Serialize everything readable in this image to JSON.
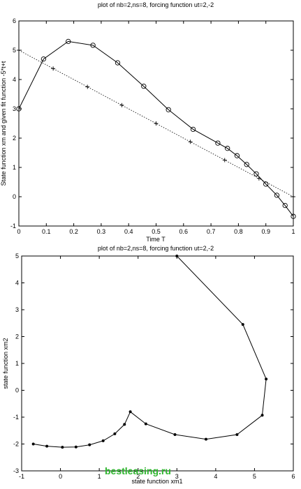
{
  "chart_data": [
    {
      "type": "line",
      "title": "plot of nb=2,ns=8, forcing function ut=2,-2",
      "xlabel": "Time T",
      "ylabel": "State function xm and given fit function -5*t+t",
      "xlim": [
        0,
        1
      ],
      "ylim": [
        -1,
        6
      ],
      "xticks": [
        "0",
        "0.1",
        "0.2",
        "0.3",
        "0.4",
        "0.5",
        "0.6",
        "0.7",
        "0.8",
        "0.9",
        "1"
      ],
      "yticks": [
        "-1",
        "0",
        "1",
        "2",
        "3",
        "4",
        "5",
        "6"
      ],
      "grid": false,
      "series": [
        {
          "marker": "circle",
          "style": "solid",
          "points": [
            [
              0,
              3.0
            ],
            [
              0.09,
              4.7
            ],
            [
              0.18,
              5.3
            ],
            [
              0.27,
              5.17
            ],
            [
              0.36,
              4.57
            ],
            [
              0.455,
              3.77
            ],
            [
              0.545,
              2.97
            ],
            [
              0.635,
              2.3
            ],
            [
              0.725,
              1.83
            ],
            [
              0.76,
              1.65
            ],
            [
              0.795,
              1.4
            ],
            [
              0.83,
              1.1
            ],
            [
              0.865,
              0.78
            ],
            [
              0.9,
              0.43
            ],
            [
              0.94,
              0.05
            ],
            [
              0.97,
              -0.3
            ],
            [
              1.0,
              -0.67
            ]
          ]
        },
        {
          "marker": "plus",
          "style": "dotted",
          "points": [
            [
              0,
              5.0
            ],
            [
              0.125,
              4.375
            ],
            [
              0.25,
              3.75
            ],
            [
              0.375,
              3.125
            ],
            [
              0.5,
              2.5
            ],
            [
              0.625,
              1.875
            ],
            [
              0.75,
              1.25
            ],
            [
              0.875,
              0.625
            ],
            [
              1.0,
              0.0
            ]
          ]
        }
      ]
    },
    {
      "type": "line",
      "title": "plot of nb=2,ns=8, forcing function ut=2,-2",
      "xlabel": "state function xm1",
      "ylabel": "state function xm2",
      "xlim": [
        -1,
        6
      ],
      "ylim": [
        -3,
        5
      ],
      "xticks": [
        "-1",
        "0",
        "1",
        "2",
        "3",
        "4",
        "5",
        "6"
      ],
      "yticks": [
        "-3",
        "-2",
        "-1",
        "0",
        "1",
        "2",
        "3",
        "4",
        "5"
      ],
      "grid": false,
      "series": [
        {
          "marker": "dot",
          "style": "solid",
          "points": [
            [
              3.0,
              5.0
            ],
            [
              4.7,
              2.45
            ],
            [
              5.3,
              0.42
            ],
            [
              5.2,
              -0.93
            ],
            [
              4.55,
              -1.65
            ],
            [
              3.75,
              -1.82
            ],
            [
              2.95,
              -1.65
            ],
            [
              2.2,
              -1.25
            ],
            [
              1.8,
              -0.8
            ],
            [
              1.65,
              -1.27
            ],
            [
              1.4,
              -1.62
            ],
            [
              1.1,
              -1.88
            ],
            [
              0.75,
              -2.03
            ],
            [
              0.4,
              -2.11
            ],
            [
              0.05,
              -2.12
            ],
            [
              -0.35,
              -2.08
            ],
            [
              -0.7,
              -2.0
            ]
          ]
        }
      ]
    }
  ],
  "watermark": "bestleasing.ru"
}
